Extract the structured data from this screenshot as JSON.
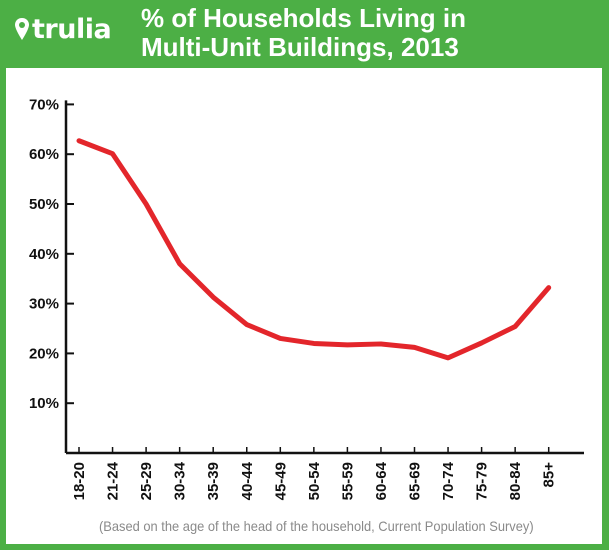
{
  "brand": {
    "logo_text": "trulia",
    "logo_icon": "map-pin-icon",
    "color": "#4caf45"
  },
  "chart_data": {
    "type": "line",
    "title": "% of Households Living in\nMulti-Unit Buildings, 2013",
    "note": "(Based on the age of the head of the household, Current Population Survey)",
    "xlabel": "",
    "ylabel": "",
    "categories": [
      "18-20",
      "21-24",
      "25-29",
      "30-34",
      "35-39",
      "40-44",
      "45-49",
      "50-54",
      "55-59",
      "60-64",
      "65-69",
      "70-74",
      "75-79",
      "80-84",
      "85+"
    ],
    "series": [
      {
        "values": [
          62.7,
          60.1,
          50.0,
          38.0,
          31.3,
          25.8,
          23.0,
          22.0,
          21.7,
          21.9,
          21.2,
          19.1,
          22.1,
          25.4,
          33.2
        ],
        "color": "#e3262b"
      }
    ],
    "y_ticks": [
      "10%",
      "20%",
      "30%",
      "40%",
      "50%",
      "60%",
      "70%"
    ],
    "ylim": [
      0,
      70
    ],
    "grid": false,
    "legend": "none"
  }
}
